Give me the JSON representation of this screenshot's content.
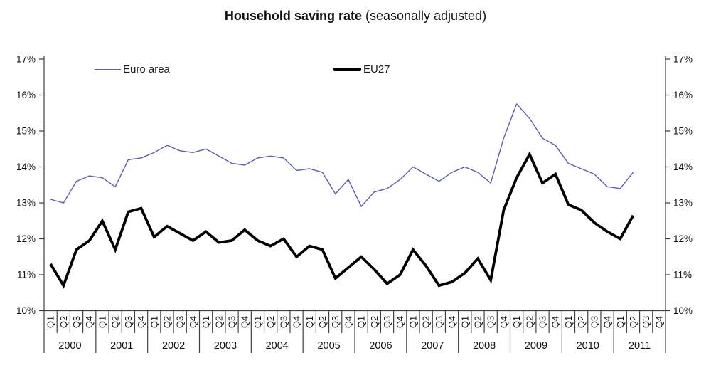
{
  "title": {
    "main": "Household saving rate",
    "suffix": " (seasonally adjusted)"
  },
  "legend": {
    "position": "top-inside",
    "items": [
      {
        "label": "Euro area",
        "color": "#5b5bc4",
        "sample_thickness": 1.4,
        "sample_length": 37
      },
      {
        "label": "EU27",
        "color": "#000000",
        "sample_thickness": 5,
        "sample_length": 39
      }
    ]
  },
  "chart_data": {
    "type": "line",
    "title": "Household saving rate (seasonally adjusted)",
    "xlabel": "",
    "ylabel": "",
    "ylim": [
      10,
      17
    ],
    "ytick_step": 1,
    "ytick_suffix": "%",
    "grid": false,
    "dual_y_axis": true,
    "x_slots": 48,
    "years": [
      "2000",
      "2001",
      "2002",
      "2003",
      "2004",
      "2005",
      "2006",
      "2007",
      "2008",
      "2009",
      "2010",
      "2011"
    ],
    "quarters": [
      "Q1",
      "Q2",
      "Q3",
      "Q4",
      "Q1",
      "Q2",
      "Q3",
      "Q4",
      "Q1",
      "Q2",
      "Q3",
      "Q4",
      "Q1",
      "Q2",
      "Q3",
      "Q4",
      "Q1",
      "Q2",
      "Q3",
      "Q4",
      "Q1",
      "Q2",
      "Q3",
      "Q4",
      "Q1",
      "Q2",
      "Q3",
      "Q4",
      "Q1",
      "Q2",
      "Q3",
      "Q4",
      "Q1",
      "Q2",
      "Q3",
      "Q4",
      "Q1",
      "Q2",
      "Q3",
      "Q4",
      "Q1",
      "Q2",
      "Q3",
      "Q4",
      "Q1",
      "Q2",
      "Q3",
      "Q4"
    ],
    "series": [
      {
        "name": "Euro area",
        "color": "#5b5bc4",
        "stroke_width": 1.4,
        "values": [
          13.1,
          13.0,
          13.6,
          13.75,
          13.7,
          13.45,
          14.2,
          14.25,
          14.4,
          14.6,
          14.45,
          14.4,
          14.5,
          14.3,
          14.1,
          14.05,
          14.25,
          14.3,
          14.25,
          13.9,
          13.95,
          13.85,
          13.25,
          13.65,
          12.9,
          13.3,
          13.4,
          13.65,
          14.0,
          13.8,
          13.6,
          13.85,
          14.0,
          13.85,
          13.55,
          14.8,
          15.75,
          15.35,
          14.8,
          14.6,
          14.1,
          13.95,
          13.8,
          13.45,
          13.4,
          13.85
        ]
      },
      {
        "name": "EU27",
        "color": "#000000",
        "stroke_width": 3.8,
        "values": [
          11.3,
          10.7,
          11.7,
          11.95,
          12.5,
          11.7,
          12.75,
          12.85,
          12.05,
          12.35,
          12.15,
          11.95,
          12.2,
          11.9,
          11.95,
          12.25,
          11.95,
          11.8,
          12.0,
          11.5,
          11.8,
          11.7,
          10.9,
          11.2,
          11.5,
          11.15,
          10.75,
          11.0,
          11.7,
          11.25,
          10.7,
          10.8,
          11.05,
          11.45,
          10.85,
          12.8,
          13.7,
          14.35,
          13.55,
          13.8,
          12.95,
          12.8,
          12.45,
          12.2,
          12.0,
          12.65
        ]
      }
    ]
  }
}
